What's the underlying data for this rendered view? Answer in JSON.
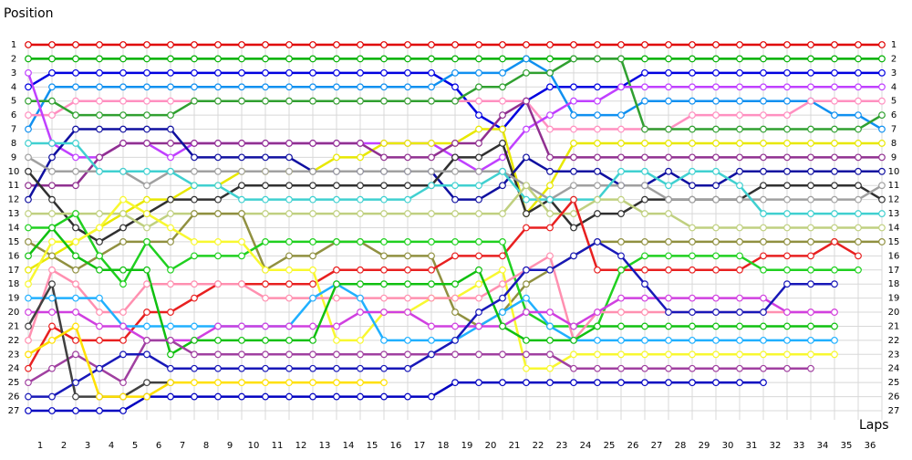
{
  "chart_data": {
    "type": "line",
    "y_axis_label": "Position",
    "x_axis_label": "Laps",
    "x": [
      0,
      1,
      2,
      3,
      4,
      5,
      6,
      7,
      8,
      9,
      10,
      11,
      12,
      13,
      14,
      15,
      16,
      17,
      18,
      19,
      20,
      21,
      22,
      23,
      24,
      25,
      26,
      27,
      28,
      29,
      30,
      31,
      32,
      33,
      34,
      35,
      36
    ],
    "xlim": [
      0,
      36
    ],
    "xticks": [
      1,
      2,
      3,
      4,
      5,
      6,
      7,
      8,
      9,
      10,
      11,
      12,
      13,
      14,
      15,
      16,
      17,
      18,
      19,
      20,
      21,
      22,
      23,
      24,
      25,
      26,
      27,
      28,
      29,
      30,
      31,
      32,
      33,
      34,
      35,
      36
    ],
    "ylim": [
      1,
      27
    ],
    "yticks": [
      1,
      2,
      3,
      4,
      5,
      6,
      7,
      8,
      9,
      10,
      11,
      12,
      13,
      14,
      15,
      16,
      17,
      18,
      19,
      20,
      21,
      22,
      23,
      24,
      25,
      26,
      27
    ],
    "y_reversed": true,
    "grid": true,
    "series": [
      {
        "color": "#e00000",
        "values": [
          1,
          1,
          1,
          1,
          1,
          1,
          1,
          1,
          1,
          1,
          1,
          1,
          1,
          1,
          1,
          1,
          1,
          1,
          1,
          1,
          1,
          1,
          1,
          1,
          1,
          1,
          1,
          1,
          1,
          1,
          1,
          1,
          1,
          1,
          1,
          1,
          1
        ]
      },
      {
        "color": "#00b000",
        "values": [
          2,
          2,
          2,
          2,
          2,
          2,
          2,
          2,
          2,
          2,
          2,
          2,
          2,
          2,
          2,
          2,
          2,
          2,
          2,
          2,
          2,
          2,
          2,
          2,
          2,
          2,
          2,
          2,
          2,
          2,
          2,
          2,
          2,
          2,
          2,
          2,
          2
        ]
      },
      {
        "color": "#0000e0",
        "values": [
          4,
          3,
          3,
          3,
          3,
          3,
          3,
          3,
          3,
          3,
          3,
          3,
          3,
          3,
          3,
          3,
          3,
          3,
          4,
          6,
          7,
          5,
          4,
          4,
          4,
          4,
          3,
          3,
          3,
          3,
          3,
          3,
          3,
          3,
          3,
          3,
          3
        ]
      },
      {
        "color": "#1090f0",
        "values": [
          7,
          4,
          4,
          4,
          4,
          4,
          4,
          4,
          4,
          4,
          4,
          4,
          4,
          4,
          4,
          4,
          4,
          4,
          3,
          3,
          3,
          2,
          3,
          6,
          6,
          6,
          5,
          5,
          5,
          5,
          5,
          5,
          5,
          5,
          6,
          6,
          7
        ]
      },
      {
        "color": "#ff90c0",
        "values": [
          6,
          6,
          5,
          5,
          5,
          5,
          5,
          5,
          5,
          5,
          5,
          5,
          5,
          5,
          5,
          5,
          5,
          5,
          5,
          5,
          5,
          5,
          7,
          7,
          7,
          7,
          7,
          7,
          6,
          6,
          6,
          6,
          6,
          5,
          5,
          5,
          5
        ]
      },
      {
        "color": "#30a030",
        "values": [
          5,
          5,
          6,
          6,
          6,
          6,
          6,
          5,
          5,
          5,
          5,
          5,
          5,
          5,
          5,
          5,
          5,
          5,
          5,
          4,
          4,
          3,
          3,
          2,
          2,
          2,
          7,
          7,
          7,
          7,
          7,
          7,
          7,
          7,
          7,
          7,
          6
        ]
      },
      {
        "color": "#c040ff",
        "values": [
          3,
          8,
          9,
          9,
          8,
          8,
          9,
          8,
          8,
          8,
          8,
          8,
          8,
          8,
          8,
          8,
          8,
          8,
          9,
          10,
          9,
          7,
          6,
          5,
          5,
          4,
          4,
          4,
          4,
          4,
          4,
          4,
          4,
          4,
          4,
          4,
          4
        ]
      },
      {
        "color": "#e8e800",
        "values": [
          17,
          16,
          15,
          14,
          13,
          12,
          12,
          11,
          11,
          10,
          10,
          10,
          10,
          9,
          9,
          8,
          8,
          8,
          8,
          7,
          7,
          13,
          11,
          8,
          8,
          8,
          8,
          8,
          8,
          8,
          8,
          8,
          8,
          8,
          8,
          8,
          8
        ]
      },
      {
        "color": "#903090",
        "values": [
          11,
          11,
          11,
          9,
          8,
          8,
          8,
          8,
          8,
          8,
          8,
          8,
          8,
          8,
          8,
          9,
          9,
          9,
          8,
          8,
          6,
          5,
          9,
          9,
          9,
          9,
          9,
          9,
          9,
          9,
          9,
          9,
          9,
          9,
          9,
          9,
          9
        ]
      },
      {
        "color": "#1010a0",
        "values": [
          12,
          9,
          7,
          7,
          7,
          7,
          7,
          9,
          9,
          9,
          9,
          9,
          10,
          10,
          10,
          10,
          10,
          10,
          12,
          12,
          11,
          9,
          10,
          10,
          10,
          11,
          11,
          10,
          11,
          11,
          10,
          10,
          10,
          10,
          10,
          10,
          10
        ]
      },
      {
        "color": "#303030",
        "values": [
          10,
          12,
          14,
          15,
          14,
          13,
          12,
          12,
          12,
          11,
          11,
          11,
          11,
          11,
          11,
          11,
          11,
          11,
          9,
          9,
          8,
          13,
          12,
          14,
          13,
          13,
          12,
          12,
          12,
          12,
          12,
          11,
          11,
          11,
          11,
          11,
          12
        ]
      },
      {
        "color": "#a0a0a0",
        "values": [
          9,
          10,
          10,
          10,
          10,
          11,
          10,
          10,
          10,
          10,
          10,
          10,
          10,
          10,
          10,
          10,
          10,
          10,
          10,
          10,
          10,
          11,
          12,
          11,
          11,
          11,
          11,
          12,
          12,
          12,
          12,
          12,
          12,
          12,
          12,
          12,
          11
        ]
      },
      {
        "color": "#40d0d0",
        "values": [
          8,
          8,
          8,
          10,
          10,
          10,
          10,
          11,
          11,
          12,
          12,
          12,
          12,
          12,
          12,
          12,
          12,
          11,
          11,
          11,
          10,
          12,
          12,
          12,
          12,
          10,
          10,
          11,
          10,
          10,
          11,
          13,
          13,
          13,
          13,
          13,
          13
        ]
      },
      {
        "color": "#c0d080",
        "values": [
          13,
          13,
          13,
          13,
          13,
          14,
          13,
          13,
          13,
          13,
          13,
          13,
          13,
          13,
          13,
          13,
          13,
          13,
          13,
          13,
          13,
          11,
          13,
          13,
          12,
          12,
          13,
          13,
          14,
          14,
          14,
          14,
          14,
          14,
          14,
          14,
          14
        ]
      },
      {
        "color": "#909040",
        "values": [
          15,
          16,
          17,
          16,
          15,
          15,
          15,
          13,
          13,
          13,
          17,
          16,
          16,
          15,
          15,
          16,
          16,
          16,
          20,
          21,
          20,
          18,
          17,
          16,
          15,
          15,
          15,
          15,
          15,
          15,
          15,
          15,
          15,
          15,
          15,
          15,
          15
        ]
      },
      {
        "color": "#e82020",
        "values": [
          24,
          21,
          22,
          22,
          22,
          20,
          20,
          19,
          18,
          18,
          18,
          18,
          18,
          17,
          17,
          17,
          17,
          17,
          16,
          16,
          16,
          14,
          14,
          12,
          17,
          17,
          17,
          17,
          17,
          17,
          17,
          16,
          16,
          16,
          15,
          16,
          null
        ]
      },
      {
        "color": "#20d020",
        "values": [
          14,
          14,
          13,
          16,
          18,
          15,
          17,
          16,
          16,
          16,
          15,
          15,
          15,
          15,
          15,
          15,
          15,
          15,
          15,
          15,
          15,
          20,
          21,
          21,
          21,
          17,
          16,
          16,
          16,
          16,
          16,
          17,
          17,
          17,
          17,
          17,
          null
        ]
      },
      {
        "color": "#f8f830",
        "values": [
          18,
          15,
          15,
          14,
          12,
          13,
          14,
          15,
          15,
          15,
          17,
          17,
          17,
          22,
          22,
          20,
          20,
          19,
          19,
          18,
          17,
          24,
          24,
          23,
          23,
          23,
          23,
          23,
          23,
          23,
          23,
          23,
          23,
          23,
          23,
          null,
          null
        ]
      },
      {
        "color": "#ff90b0",
        "values": [
          22,
          17,
          18,
          20,
          20,
          18,
          18,
          18,
          18,
          18,
          19,
          19,
          19,
          19,
          19,
          19,
          19,
          19,
          19,
          19,
          18,
          17,
          16,
          22,
          20,
          20,
          20,
          20,
          20,
          20,
          20,
          20,
          20,
          20,
          20,
          null,
          null
        ]
      },
      {
        "color": "#20b0ff",
        "values": [
          19,
          19,
          19,
          19,
          21,
          21,
          21,
          21,
          21,
          21,
          21,
          21,
          19,
          18,
          19,
          22,
          22,
          22,
          22,
          21,
          20,
          19,
          21,
          22,
          22,
          22,
          22,
          22,
          22,
          22,
          22,
          22,
          22,
          22,
          22,
          null,
          null
        ]
      },
      {
        "color": "#d040e0",
        "values": [
          20,
          20,
          20,
          21,
          21,
          22,
          22,
          22,
          21,
          21,
          21,
          21,
          21,
          21,
          20,
          20,
          20,
          21,
          21,
          21,
          21,
          20,
          20,
          21,
          20,
          19,
          19,
          19,
          19,
          19,
          19,
          19,
          20,
          20,
          20,
          null,
          null
        ]
      },
      {
        "color": "#10c010",
        "values": [
          16,
          14,
          16,
          17,
          17,
          17,
          23,
          22,
          22,
          22,
          22,
          22,
          22,
          18,
          18,
          18,
          18,
          18,
          18,
          17,
          21,
          22,
          22,
          22,
          21,
          21,
          21,
          21,
          21,
          21,
          21,
          21,
          21,
          21,
          21,
          null,
          null
        ]
      },
      {
        "color": "#a040a0",
        "values": [
          25,
          24,
          23,
          24,
          25,
          22,
          22,
          23,
          23,
          23,
          23,
          23,
          23,
          23,
          23,
          23,
          23,
          23,
          23,
          23,
          23,
          23,
          23,
          24,
          24,
          24,
          24,
          24,
          24,
          24,
          24,
          24,
          24,
          24,
          null,
          null,
          null
        ]
      },
      {
        "color": "#0000c0",
        "values": [
          27,
          27,
          27,
          27,
          27,
          26,
          26,
          26,
          26,
          26,
          26,
          26,
          26,
          26,
          26,
          26,
          26,
          26,
          25,
          25,
          25,
          25,
          25,
          25,
          25,
          25,
          25,
          25,
          25,
          25,
          25,
          25,
          null,
          null,
          null,
          null,
          null
        ]
      },
      {
        "color": "#1818b8",
        "values": [
          26,
          26,
          25,
          24,
          23,
          23,
          24,
          24,
          24,
          24,
          24,
          24,
          24,
          24,
          24,
          24,
          24,
          23,
          22,
          20,
          19,
          17,
          17,
          16,
          15,
          16,
          18,
          20,
          20,
          20,
          20,
          20,
          18,
          18,
          18,
          null,
          null
        ]
      },
      {
        "color": "#404040",
        "values": [
          21,
          18,
          26,
          26,
          26,
          25,
          25,
          null,
          null,
          null,
          null,
          null,
          null,
          null,
          null,
          null,
          null,
          null,
          null,
          null,
          null,
          null,
          null,
          null,
          null,
          null,
          null,
          null,
          null,
          null,
          null,
          null,
          null,
          null,
          null,
          null,
          null
        ]
      },
      {
        "color": "#ffe000",
        "values": [
          23,
          22,
          21,
          26,
          26,
          26,
          25,
          25,
          25,
          25,
          25,
          25,
          25,
          25,
          25,
          25,
          null,
          null,
          null,
          null,
          null,
          null,
          null,
          null,
          null,
          null,
          null,
          null,
          null,
          null,
          null,
          null,
          null,
          null,
          null,
          null,
          null
        ]
      }
    ]
  }
}
